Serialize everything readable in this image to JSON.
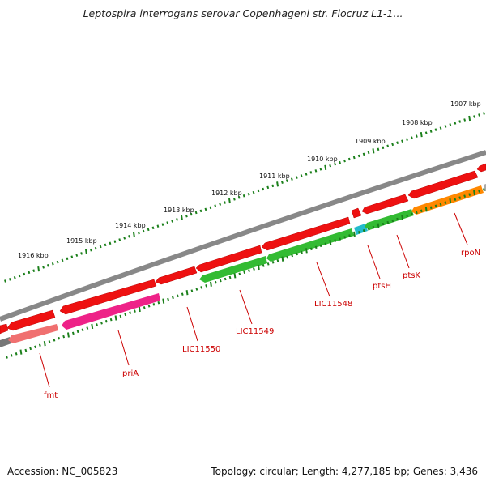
{
  "header": {
    "title": "Leptospira interrogans serovar Copenhageni str. Fiocruz L1-1..."
  },
  "footer": {
    "accession": "Accession: NC_005823",
    "summary": "Topology: circular; Length: 4,277,185 bp; Genes: 3,436"
  },
  "colors": {
    "backbone": "#7a7a7a",
    "tick": "#1a7f1a",
    "forward_gene": "#ee1111",
    "label": "#cc0000",
    "fmt": "#f07070",
    "priA": "#ee2288",
    "green_gene": "#33bb33",
    "ptsH": "#22bbcc",
    "rpoN": "#ff8800"
  },
  "ticks": [
    {
      "label": "1907 kbp"
    },
    {
      "label": "1908 kbp"
    },
    {
      "label": "1909 kbp"
    },
    {
      "label": "1910 kbp"
    },
    {
      "label": "1911 kbp"
    },
    {
      "label": "1912 kbp"
    },
    {
      "label": "1913 kbp"
    },
    {
      "label": "1914 kbp"
    },
    {
      "label": "1915 kbp"
    },
    {
      "label": "1916 kbp"
    }
  ],
  "genes": [
    {
      "name": "fmt"
    },
    {
      "name": "priA"
    },
    {
      "name": "LIC11550"
    },
    {
      "name": "LIC11549"
    },
    {
      "name": "LIC11548"
    },
    {
      "name": "ptsH"
    },
    {
      "name": "ptsK"
    },
    {
      "name": "rpoN"
    }
  ]
}
